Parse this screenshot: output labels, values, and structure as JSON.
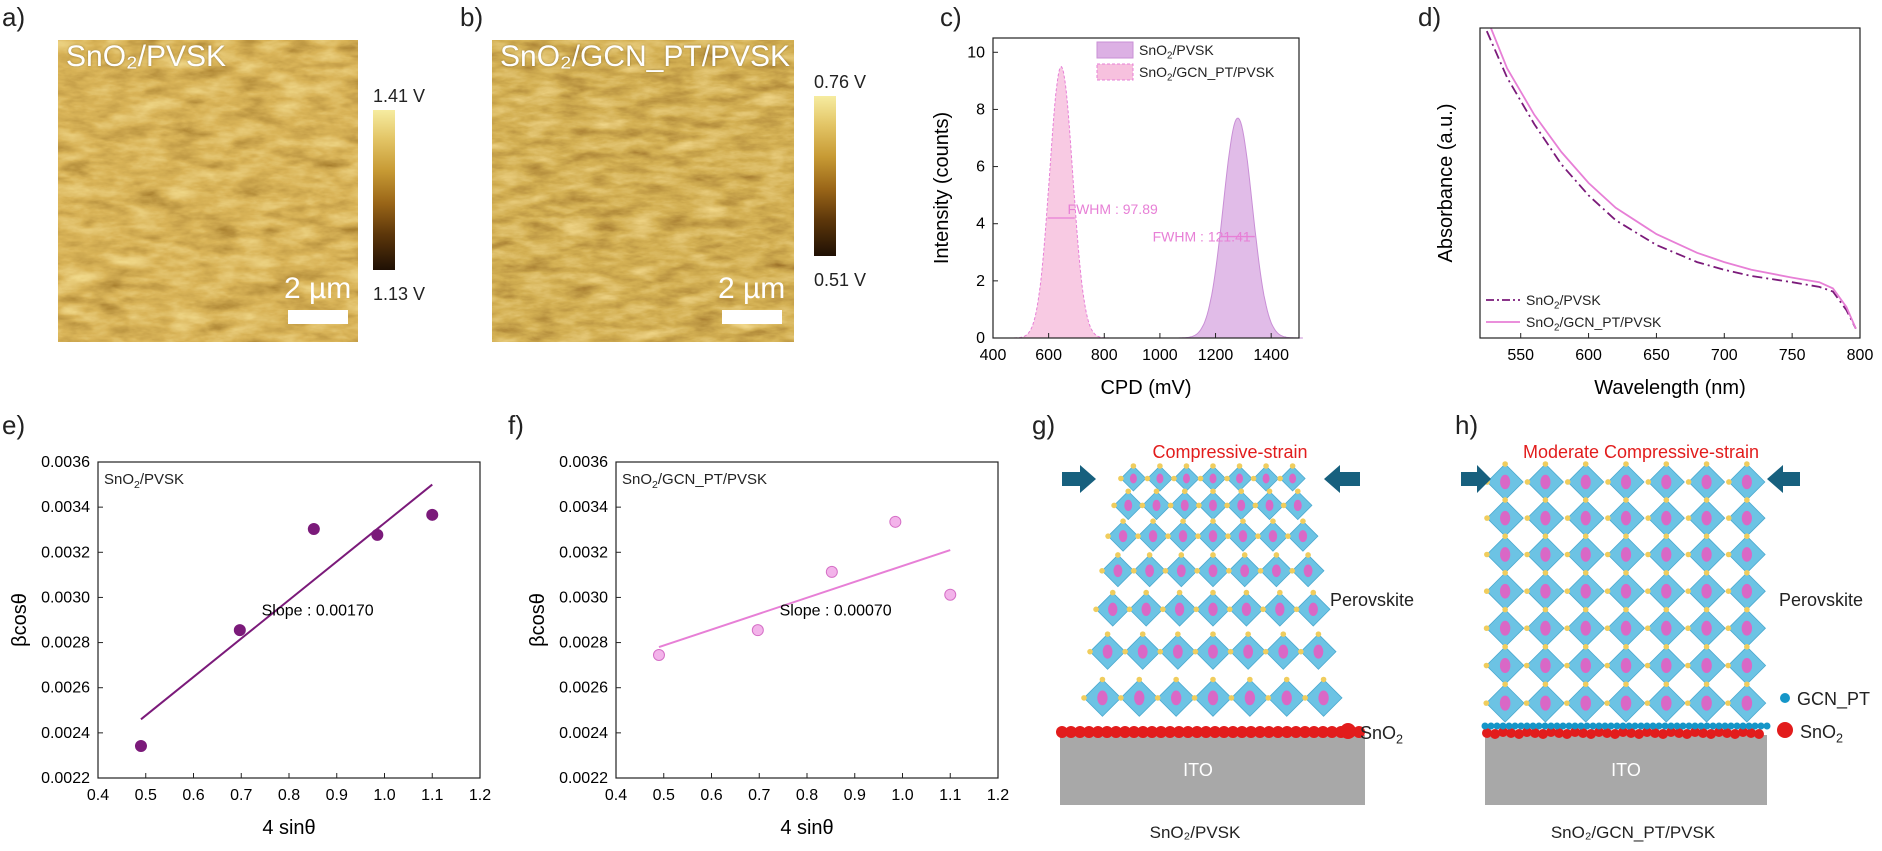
{
  "panels": {
    "a": {
      "letter": "a)",
      "label": "SnO₂/PVSK",
      "scale": "2 µm",
      "cbar_max": "1.41 V",
      "cbar_min": "1.13 V"
    },
    "b": {
      "letter": "b)",
      "label": "SnO₂/GCN_PT/PVSK",
      "scale": "2 µm",
      "cbar_max": "0.76 V",
      "cbar_min": "0.51 V"
    },
    "c": {
      "letter": "c)"
    },
    "d": {
      "letter": "d)"
    },
    "e": {
      "letter": "e)"
    },
    "f": {
      "letter": "f)"
    },
    "g": {
      "letter": "g)",
      "strain": "Compressive-strain",
      "perovskite": "Perovskite",
      "sno2": "SnO₂",
      "ito": "ITO",
      "caption": "SnO₂/PVSK"
    },
    "h": {
      "letter": "h)",
      "strain": "Moderate Compressive-strain",
      "perovskite": "Perovskite",
      "gcn": "GCN_PT",
      "sno2": "SnO₂",
      "ito": "ITO",
      "caption": "SnO₂/GCN_PT/PVSK"
    }
  },
  "colors": {
    "purple": "#7b1a7a",
    "pink": "#e77fd6",
    "pinkFill": "#f7c1de",
    "lilacFill": "#dcb0e4",
    "red": "#e21c1c",
    "arrow": "#17607e",
    "ito": "#a8a8a8",
    "octa": "#6cc3e4",
    "cation": "#d968c6",
    "gcn": "#1596c8"
  },
  "chart_data": [
    {
      "id": "c",
      "type": "area",
      "xlabel": "CPD (mV)",
      "ylabel": "Intensity (counts)",
      "xlim": [
        400,
        1500
      ],
      "ylim": [
        0,
        10.5
      ],
      "xticks": [
        400,
        600,
        800,
        1000,
        1200,
        1400
      ],
      "yticks": [
        0,
        2,
        4,
        6,
        8,
        10
      ],
      "series": [
        {
          "name": "SnO₂/PVSK",
          "peak": 1280,
          "sigma": 52,
          "height": 7.7,
          "fwhm_label": "FWHM : 121.41",
          "fwhm_y": 3.55
        },
        {
          "name": "SnO₂/GCN_PT/PVSK",
          "peak": 645,
          "sigma": 41.5,
          "height": 9.5,
          "fwhm_label": "FWHM : 97.89",
          "fwhm_y": 4.2
        }
      ],
      "legend": "top-right"
    },
    {
      "id": "d",
      "type": "line",
      "xlabel": "Wavelength (nm)",
      "ylabel": "Absorbance (a.u.)",
      "xlim": [
        520,
        800
      ],
      "xticks": [
        550,
        600,
        650,
        700,
        750,
        800
      ],
      "series": [
        {
          "name": "SnO₂/PVSK",
          "style": "dashdot",
          "x": [
            525,
            540,
            560,
            580,
            600,
            620,
            650,
            680,
            700,
            720,
            750,
            770,
            780,
            790,
            797
          ],
          "y": [
            0.99,
            0.84,
            0.69,
            0.56,
            0.46,
            0.38,
            0.3,
            0.245,
            0.22,
            0.2,
            0.18,
            0.165,
            0.15,
            0.09,
            0.03
          ]
        },
        {
          "name": "SnO₂/GCN_PT/PVSK",
          "style": "solid",
          "x": [
            528,
            540,
            560,
            580,
            600,
            620,
            650,
            680,
            700,
            720,
            750,
            770,
            780,
            790,
            797
          ],
          "y": [
            1.0,
            0.87,
            0.72,
            0.6,
            0.5,
            0.42,
            0.335,
            0.275,
            0.245,
            0.22,
            0.195,
            0.18,
            0.16,
            0.1,
            0.03
          ]
        }
      ],
      "legend": "bottom-left"
    },
    {
      "id": "e",
      "type": "scatter",
      "xlabel": "4 sinθ",
      "ylabel": "βcosθ",
      "xlim": [
        0.4,
        1.2
      ],
      "ylim": [
        0.0022,
        0.0036
      ],
      "xticks": [
        "0.4",
        "0.5",
        "0.6",
        "0.7",
        "0.8",
        "0.9",
        "1.0",
        "1.1",
        "1.2"
      ],
      "yticks": [
        "0.0022",
        "0.0024",
        "0.0026",
        "0.0028",
        "0.0030",
        "0.0032",
        "0.0034",
        "0.0036"
      ],
      "title": "SnO₂/PVSK",
      "annotation": "Slope : 0.00170",
      "x": [
        0.49,
        0.697,
        0.852,
        0.985,
        1.1
      ],
      "y": [
        0.002342,
        0.002855,
        0.003303,
        0.003277,
        0.003366
      ],
      "fit": [
        [
          0.49,
          0.00246
        ],
        [
          1.1,
          0.0035
        ]
      ]
    },
    {
      "id": "f",
      "type": "scatter",
      "xlabel": "4 sinθ",
      "ylabel": "βcosθ",
      "xlim": [
        0.4,
        1.2
      ],
      "ylim": [
        0.0022,
        0.0036
      ],
      "xticks": [
        "0.4",
        "0.5",
        "0.6",
        "0.7",
        "0.8",
        "0.9",
        "1.0",
        "1.1",
        "1.2"
      ],
      "yticks": [
        "0.0022",
        "0.0024",
        "0.0026",
        "0.0028",
        "0.0030",
        "0.0032",
        "0.0034",
        "0.0036"
      ],
      "title": "SnO₂/GCN_PT/PVSK",
      "annotation": "Slope : 0.00070",
      "x": [
        0.49,
        0.697,
        0.852,
        0.985,
        1.1
      ],
      "y": [
        0.002745,
        0.002855,
        0.003113,
        0.003335,
        0.003012
      ],
      "fit": [
        [
          0.49,
          0.00278
        ],
        [
          1.1,
          0.00321
        ]
      ]
    }
  ]
}
